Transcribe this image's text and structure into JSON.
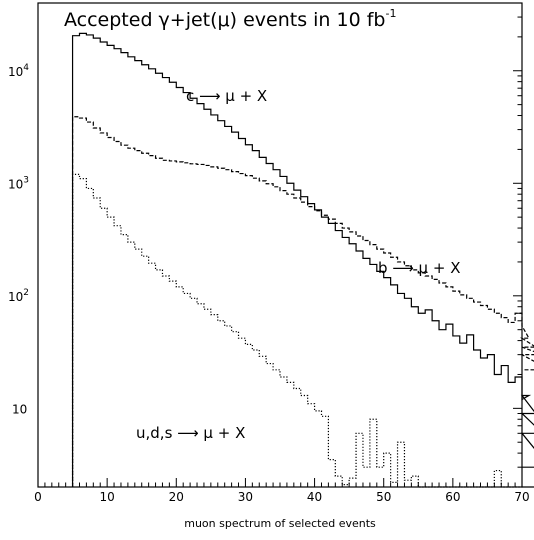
{
  "chart_data": {
    "type": "line",
    "title": "Accepted γ+jet(μ) events in 10 fb",
    "title_superscript": "-1",
    "xlabel": "muon spectrum of selected events",
    "ylabel": "",
    "xlim": [
      0,
      70
    ],
    "ylim": [
      2,
      40000
    ],
    "y_scale": "log",
    "grid": false,
    "x_ticks": [
      0,
      10,
      20,
      30,
      40,
      50,
      60,
      70
    ],
    "y_ticks": [
      {
        "value": 10,
        "label": "10",
        "exp": ""
      },
      {
        "value": 100,
        "label": "10",
        "exp": "2"
      },
      {
        "value": 1000,
        "label": "10",
        "exp": "3"
      },
      {
        "value": 10000,
        "label": "10",
        "exp": "4"
      }
    ],
    "annotations": [
      {
        "text": "c ⟶ μ + X",
        "series": "c"
      },
      {
        "text": "b ⟶ μ + X",
        "series": "b"
      },
      {
        "text": "u,d,s ⟶ μ + X",
        "series": "uds"
      }
    ],
    "bin_width": 1,
    "series": [
      {
        "key": "c",
        "style": "solid",
        "values": [
          20500,
          21500,
          20800,
          19500,
          18000,
          16800,
          15700,
          14500,
          13300,
          12300,
          11300,
          10400,
          9500,
          8700,
          7900,
          7100,
          6400,
          5700,
          5100,
          4550,
          4050,
          3600,
          3200,
          2850,
          2500,
          2200,
          1950,
          1700,
          1500,
          1320,
          1150,
          1000,
          870,
          760,
          660,
          580,
          500,
          440,
          380,
          330,
          290,
          250,
          215,
          190,
          165,
          145,
          125,
          105,
          95,
          80,
          70,
          75,
          60,
          50,
          56,
          44,
          38,
          45,
          33,
          28,
          30,
          20,
          24,
          17,
          19,
          12,
          13,
          9,
          6,
          3
        ]
      },
      {
        "key": "b",
        "style": "dashed",
        "values": [
          3900,
          3800,
          3500,
          3100,
          2800,
          2550,
          2350,
          2180,
          2050,
          1950,
          1850,
          1760,
          1670,
          1600,
          1580,
          1550,
          1520,
          1490,
          1470,
          1440,
          1400,
          1360,
          1320,
          1270,
          1220,
          1170,
          1110,
          1050,
          990,
          930,
          860,
          800,
          740,
          680,
          620,
          570,
          520,
          480,
          440,
          400,
          370,
          340,
          310,
          285,
          260,
          240,
          220,
          200,
          185,
          170,
          160,
          150,
          140,
          130,
          120,
          110,
          102,
          95,
          88,
          82,
          76,
          70,
          64,
          58,
          70,
          54,
          42,
          35,
          30,
          22
        ]
      },
      {
        "key": "uds",
        "style": "dotted",
        "values": [
          1200,
          1100,
          900,
          740,
          600,
          500,
          420,
          350,
          300,
          260,
          225,
          195,
          170,
          150,
          135,
          120,
          105,
          95,
          85,
          76,
          68,
          60,
          54,
          48,
          42,
          37,
          33,
          29,
          25,
          22,
          19,
          17,
          15,
          13,
          11,
          9.5,
          8.5,
          3.5,
          2.5,
          2.1,
          2.4,
          6,
          3,
          8,
          3,
          4,
          2.2,
          5,
          2.3,
          2.5,
          2,
          2,
          2,
          2,
          2,
          2,
          2,
          2,
          2,
          2,
          2,
          2.8,
          2,
          2,
          2,
          2,
          2,
          2,
          2,
          2
        ]
      }
    ]
  }
}
